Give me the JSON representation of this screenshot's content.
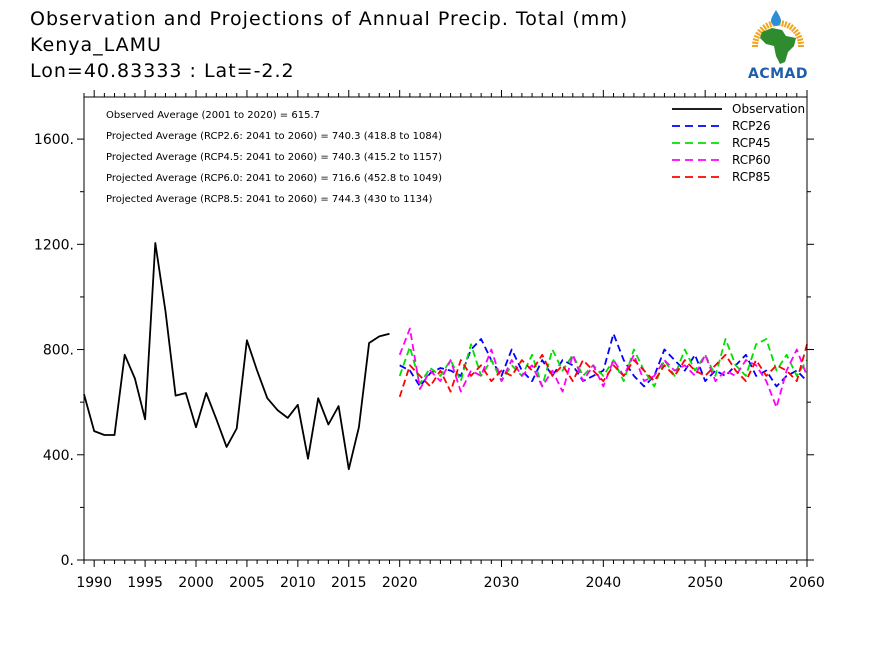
{
  "header": {
    "title": "Observation and Projections of Annual Precip. Total (mm)",
    "location": "Kenya_LAMU",
    "coords": "Lon=40.83333 : Lat=-2.2"
  },
  "logo": {
    "text": "ACMAD",
    "colors": {
      "text": "#1f5fa8",
      "africa": "#2e8b2e",
      "sun": "#f2a51a",
      "drop": "#2a8fd6"
    }
  },
  "annotations": [
    "Observed Average (2001 to 2020) = 615.7",
    "Projected Average (RCP2.6: 2041 to 2060) = 740.3 (418.8 to 1084)",
    "Projected Average (RCP4.5: 2041 to 2060) = 740.3 (415.2 to 1157)",
    "Projected Average (RCP6.0: 2041 to 2060) = 716.6 (452.8 to 1049)",
    "Projected Average (RCP8.5: 2041 to 2060) = 744.3 (430 to 1134)"
  ],
  "chart_data": {
    "type": "line",
    "xlim": [
      1989,
      2060
    ],
    "ylim": [
      0,
      1760
    ],
    "x_ticks": [
      1990,
      1995,
      2000,
      2005,
      2010,
      2015,
      2020,
      2030,
      2040,
      2050,
      2060
    ],
    "x_tick_labels": [
      "1990",
      "1995",
      "2000",
      "2005",
      "2010",
      "2015",
      "2020",
      "2030",
      "2040",
      "2050",
      "2060"
    ],
    "y_ticks": [
      0,
      400,
      800,
      1200,
      1600
    ],
    "y_tick_labels": [
      "0.",
      "400.",
      "800.",
      "1200.",
      "1600."
    ],
    "legend_position": "top-right",
    "series": [
      {
        "name": "Observation",
        "color": "#000000",
        "dashed": false,
        "x": [
          1989,
          1990,
          1991,
          1992,
          1993,
          1994,
          1995,
          1996,
          1997,
          1998,
          1999,
          2000,
          2001,
          2002,
          2003,
          2004,
          2005,
          2006,
          2007,
          2008,
          2009,
          2010,
          2011,
          2012,
          2013,
          2014,
          2015,
          2016,
          2017,
          2018,
          2019
        ],
        "y": [
          630,
          490,
          475,
          475,
          780,
          690,
          535,
          1205,
          945,
          625,
          635,
          505,
          635,
          535,
          430,
          500,
          835,
          720,
          615,
          570,
          540,
          590,
          385,
          615,
          515,
          585,
          345,
          505,
          825,
          850,
          860
        ]
      },
      {
        "name": "RCP26",
        "color": "#0000ff",
        "dashed": true,
        "x": [
          2020,
          2021,
          2022,
          2023,
          2024,
          2025,
          2026,
          2027,
          2028,
          2029,
          2030,
          2031,
          2032,
          2033,
          2034,
          2035,
          2036,
          2037,
          2038,
          2039,
          2040,
          2041,
          2042,
          2043,
          2044,
          2045,
          2046,
          2047,
          2048,
          2049,
          2050,
          2051,
          2052,
          2053,
          2054,
          2055,
          2056,
          2057,
          2058,
          2059,
          2060
        ],
        "y": [
          740,
          720,
          660,
          710,
          730,
          720,
          700,
          800,
          840,
          760,
          700,
          800,
          720,
          680,
          760,
          700,
          760,
          740,
          680,
          700,
          720,
          860,
          760,
          700,
          660,
          700,
          800,
          760,
          720,
          780,
          680,
          720,
          700,
          740,
          780,
          700,
          720,
          660,
          700,
          720,
          680
        ]
      },
      {
        "name": "RCP45",
        "color": "#00e000",
        "dashed": true,
        "x": [
          2020,
          2021,
          2022,
          2023,
          2024,
          2025,
          2026,
          2027,
          2028,
          2029,
          2030,
          2031,
          2032,
          2033,
          2034,
          2035,
          2036,
          2037,
          2038,
          2039,
          2040,
          2041,
          2042,
          2043,
          2044,
          2045,
          2046,
          2047,
          2048,
          2049,
          2050,
          2051,
          2052,
          2053,
          2054,
          2055,
          2056,
          2057,
          2058,
          2059,
          2060
        ],
        "y": [
          700,
          810,
          670,
          730,
          700,
          760,
          680,
          820,
          700,
          760,
          680,
          740,
          700,
          780,
          660,
          800,
          720,
          780,
          700,
          740,
          700,
          760,
          680,
          800,
          720,
          660,
          760,
          700,
          800,
          720,
          780,
          700,
          840,
          740,
          700,
          820,
          840,
          720,
          780,
          700,
          760
        ]
      },
      {
        "name": "RCP60",
        "color": "#ff00ff",
        "dashed": true,
        "x": [
          2020,
          2021,
          2022,
          2023,
          2024,
          2025,
          2026,
          2027,
          2028,
          2029,
          2030,
          2031,
          2032,
          2033,
          2034,
          2035,
          2036,
          2037,
          2038,
          2039,
          2040,
          2041,
          2042,
          2043,
          2044,
          2045,
          2046,
          2047,
          2048,
          2049,
          2050,
          2051,
          2052,
          2053,
          2054,
          2055,
          2056,
          2057,
          2058,
          2059,
          2060
        ],
        "y": [
          780,
          880,
          650,
          720,
          680,
          760,
          640,
          720,
          700,
          800,
          680,
          760,
          700,
          740,
          660,
          720,
          640,
          780,
          680,
          740,
          660,
          760,
          700,
          780,
          680,
          700,
          760,
          720,
          740,
          700,
          780,
          680,
          720,
          700,
          760,
          740,
          680,
          580,
          720,
          800,
          700
        ]
      },
      {
        "name": "RCP85",
        "color": "#ff0000",
        "dashed": true,
        "x": [
          2020,
          2021,
          2022,
          2023,
          2024,
          2025,
          2026,
          2027,
          2028,
          2029,
          2030,
          2031,
          2032,
          2033,
          2034,
          2035,
          2036,
          2037,
          2038,
          2039,
          2040,
          2041,
          2042,
          2043,
          2044,
          2045,
          2046,
          2047,
          2048,
          2049,
          2050,
          2051,
          2052,
          2053,
          2054,
          2055,
          2056,
          2057,
          2058,
          2059,
          2060
        ],
        "y": [
          620,
          740,
          700,
          660,
          720,
          640,
          760,
          700,
          740,
          680,
          720,
          700,
          760,
          720,
          780,
          700,
          740,
          680,
          760,
          720,
          680,
          740,
          700,
          760,
          720,
          680,
          740,
          700,
          760,
          720,
          700,
          740,
          780,
          720,
          680,
          760,
          700,
          740,
          720,
          680,
          820
        ]
      }
    ]
  }
}
